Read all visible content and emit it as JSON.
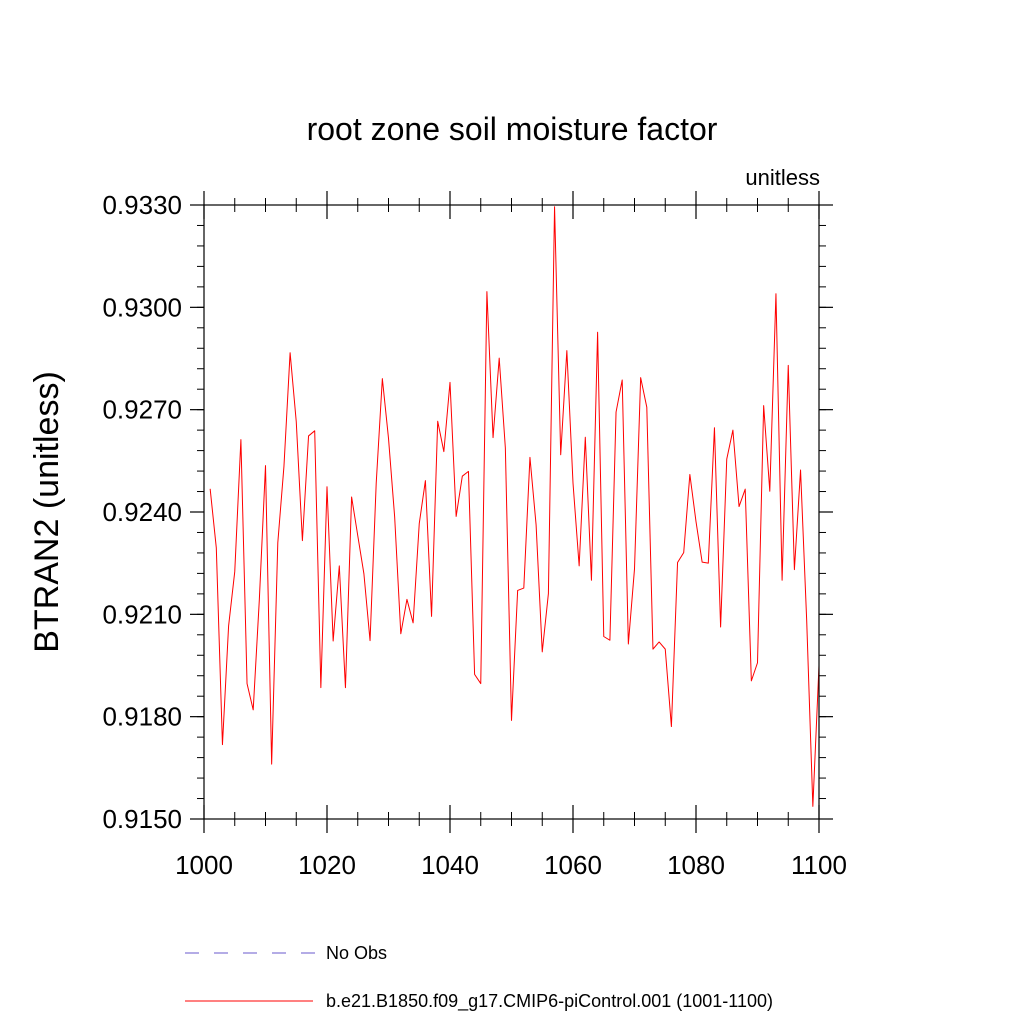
{
  "chart_data": {
    "type": "line",
    "title": "root zone soil moisture factor",
    "units_label": "unitless",
    "ylabel": "BTRAN2  (unitless)",
    "xlabel": "",
    "xlim": [
      1000,
      1100
    ],
    "ylim": [
      0.915,
      0.933
    ],
    "x_major_ticks": [
      1000,
      1020,
      1040,
      1060,
      1080,
      1100
    ],
    "x_tick_labels": [
      "1000",
      "1020",
      "1040",
      "1060",
      "1080",
      "1100"
    ],
    "x_minor_step": 5,
    "y_major_ticks": [
      0.915,
      0.918,
      0.921,
      0.924,
      0.927,
      0.93,
      0.933
    ],
    "y_tick_labels": [
      "0.9150",
      "0.9180",
      "0.9210",
      "0.9240",
      "0.9270",
      "0.9300",
      "0.9330"
    ],
    "y_minor_step": 0.0006,
    "legend": [
      {
        "label": "No Obs",
        "color": "#6a5acd",
        "dash": true
      },
      {
        "label": "b.e21.B1850.f09_g17.CMIP6-piControl.001 (1001-1100)",
        "color": "#ff0000",
        "dash": false
      }
    ],
    "series": [
      {
        "name": "b.e21.B1850.f09_g17.CMIP6-piControl.001 (1001-1100)",
        "color": "#ff0000",
        "x_start": 1001,
        "x_step": 1,
        "values": [
          0.92468,
          0.92295,
          0.91718,
          0.92066,
          0.92225,
          0.92612,
          0.91897,
          0.9182,
          0.92144,
          0.92536,
          0.91661,
          0.9231,
          0.92534,
          0.92867,
          0.92665,
          0.92316,
          0.92623,
          0.92638,
          0.91885,
          0.92474,
          0.92022,
          0.92242,
          0.91885,
          0.92444,
          0.92331,
          0.92219,
          0.92023,
          0.92484,
          0.92791,
          0.92616,
          0.92386,
          0.92043,
          0.92144,
          0.92075,
          0.92366,
          0.92492,
          0.92094,
          0.92666,
          0.92577,
          0.9278,
          0.92387,
          0.92505,
          0.92519,
          0.91924,
          0.91897,
          0.93046,
          0.92618,
          0.92851,
          0.92588,
          0.91789,
          0.9217,
          0.92177,
          0.9256,
          0.92362,
          0.9199,
          0.92161,
          0.93295,
          0.92568,
          0.92873,
          0.92485,
          0.92242,
          0.92619,
          0.922,
          0.92927,
          0.92035,
          0.92024,
          0.92693,
          0.92787,
          0.92013,
          0.92233,
          0.92794,
          0.92707,
          0.91998,
          0.92019,
          0.91998,
          0.91771,
          0.92252,
          0.92281,
          0.9251,
          0.92372,
          0.92253,
          0.9225,
          0.92647,
          0.92063,
          0.92555,
          0.9264,
          0.92416,
          0.92467,
          0.91905,
          0.91958,
          0.92712,
          0.92461,
          0.9304,
          0.922,
          0.9283,
          0.92231,
          0.92523,
          0.92081,
          0.91537,
          0.9195
        ]
      }
    ]
  }
}
